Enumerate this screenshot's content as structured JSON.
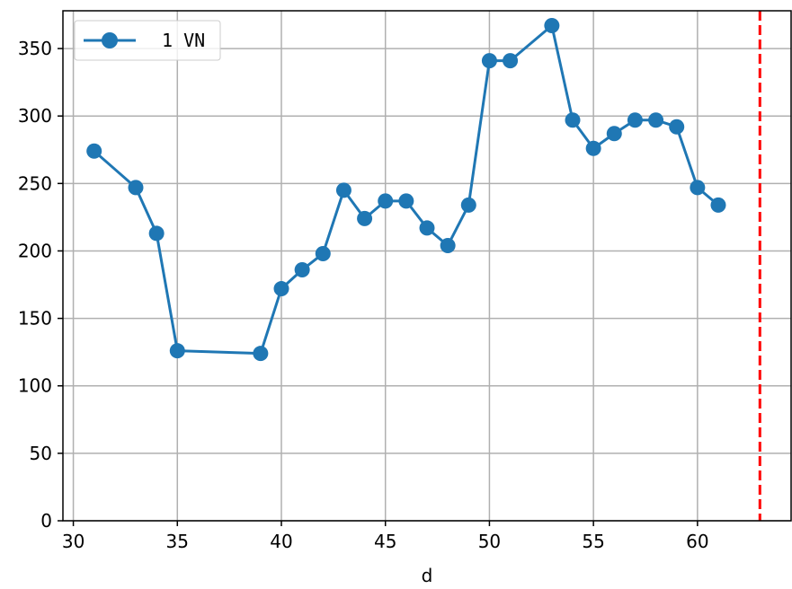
{
  "chart_data": {
    "type": "line",
    "title": "",
    "xlabel": "d",
    "ylabel": "",
    "xlim": [
      29.5,
      64.5
    ],
    "ylim": [
      0,
      378
    ],
    "xticks": [
      30,
      35,
      40,
      45,
      50,
      55,
      60
    ],
    "yticks": [
      0,
      50,
      100,
      150,
      200,
      250,
      300,
      350
    ],
    "grid": true,
    "legend_position": "top-left",
    "series": [
      {
        "name": "1 VN",
        "color": "#1f77b4",
        "marker": "circle",
        "x": [
          31,
          33,
          34,
          35,
          39,
          40,
          41,
          42,
          43,
          44,
          45,
          46,
          47,
          48,
          49,
          50,
          51,
          53,
          54,
          55,
          56,
          57,
          58,
          59,
          60,
          61
        ],
        "y": [
          274,
          247,
          213,
          126,
          124,
          172,
          186,
          198,
          245,
          224,
          237,
          237,
          217,
          204,
          234,
          341,
          341,
          367,
          297,
          276,
          287,
          297,
          297,
          292,
          247,
          234
        ]
      }
    ],
    "reference_line": {
      "orientation": "vertical",
      "x": 63,
      "color": "#ff0000",
      "style": "dashed"
    }
  }
}
